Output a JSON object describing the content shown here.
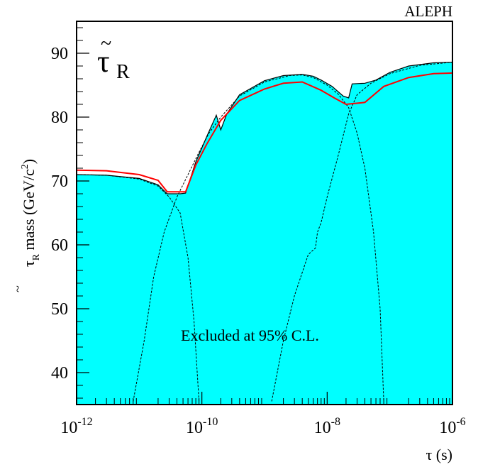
{
  "chart_data": {
    "type": "area",
    "title": "ALEPH",
    "particle_label": "τ̃R",
    "ylabel": "τ̃R mass (GeV/c²)",
    "xlabel": "τ (s)",
    "xscale": "log",
    "xlim": [
      1e-12,
      1e-06
    ],
    "ylim": [
      35,
      95
    ],
    "x_ticks": [
      {
        "value": 1e-12,
        "base": "10",
        "exp": "-12"
      },
      {
        "value": 1e-10,
        "base": "10",
        "exp": "-10"
      },
      {
        "value": 1e-08,
        "base": "10",
        "exp": "-8"
      },
      {
        "value": 1e-06,
        "base": "10",
        "exp": "-6"
      }
    ],
    "y_ticks": [
      40,
      50,
      60,
      70,
      80,
      90
    ],
    "annotation": "Excluded at 95% C.L.",
    "colors": {
      "excluded_fill": "#00ffff",
      "expected_line": "#ff0000",
      "component_line": "#000000"
    },
    "excluded_region": [
      [
        1e-12,
        71.0
      ],
      [
        3e-12,
        70.9
      ],
      [
        1e-11,
        70.4
      ],
      [
        2e-11,
        69.4
      ],
      [
        2.8e-11,
        68.0
      ],
      [
        4.5e-11,
        68.0
      ],
      [
        5.5e-11,
        68.1
      ],
      [
        8e-11,
        73
      ],
      [
        1.2e-10,
        77
      ],
      [
        1.7e-10,
        80.3
      ],
      [
        2e-10,
        78.0
      ],
      [
        2.5e-10,
        80.5
      ],
      [
        4e-10,
        83.5
      ],
      [
        1e-09,
        85.7
      ],
      [
        2e-09,
        86.5
      ],
      [
        4e-09,
        86.7
      ],
      [
        6e-09,
        86.4
      ],
      [
        8e-09,
        85.8
      ],
      [
        1.2e-08,
        84.8
      ],
      [
        1.8e-08,
        83.3
      ],
      [
        2.2e-08,
        83.0
      ],
      [
        2.5e-08,
        85.2
      ],
      [
        4e-08,
        85.3
      ],
      [
        6e-08,
        85.8
      ],
      [
        1e-07,
        87.0
      ],
      [
        2e-07,
        88.0
      ],
      [
        5e-07,
        88.5
      ],
      [
        1e-06,
        88.6
      ]
    ],
    "expected_limit": [
      [
        1e-12,
        71.7
      ],
      [
        3e-12,
        71.6
      ],
      [
        1e-11,
        71.0
      ],
      [
        2e-11,
        70.1
      ],
      [
        2.8e-11,
        68.3
      ],
      [
        5.5e-11,
        68.3
      ],
      [
        8e-11,
        72.5
      ],
      [
        1.2e-10,
        75.8
      ],
      [
        2e-10,
        79.5
      ],
      [
        4e-10,
        82.6
      ],
      [
        1e-09,
        84.4
      ],
      [
        2e-09,
        85.3
      ],
      [
        4e-09,
        85.5
      ],
      [
        8e-09,
        84.2
      ],
      [
        1.3e-08,
        83.0
      ],
      [
        2e-08,
        82.0
      ],
      [
        4e-08,
        82.3
      ],
      [
        8e-08,
        84.8
      ],
      [
        2e-07,
        86.2
      ],
      [
        5e-07,
        86.8
      ],
      [
        1e-06,
        86.9
      ]
    ],
    "component_curves": [
      [
        [
          1e-12,
          71.0
        ],
        [
          3e-12,
          70.9
        ],
        [
          1e-11,
          70.3
        ],
        [
          2e-11,
          69.2
        ],
        [
          3e-11,
          67.5
        ],
        [
          4.5e-11,
          65.0
        ],
        [
          6e-11,
          58.0
        ],
        [
          7.5e-11,
          48.0
        ],
        [
          9e-11,
          35.5
        ]
      ],
      [
        [
          8e-12,
          35.5
        ],
        [
          1.2e-11,
          45.0
        ],
        [
          1.7e-11,
          55.0
        ],
        [
          2.5e-11,
          62.0
        ],
        [
          4e-11,
          67.5
        ],
        [
          6e-11,
          71.0
        ],
        [
          9e-11,
          74.5
        ],
        [
          1.3e-10,
          77.5
        ],
        [
          2e-10,
          80.0
        ],
        [
          4e-10,
          83.3
        ],
        [
          1e-09,
          85.5
        ],
        [
          2.5e-09,
          86.5
        ],
        [
          4e-09,
          86.6
        ],
        [
          6e-09,
          86.2
        ],
        [
          1e-08,
          85.0
        ],
        [
          1.5e-08,
          83.6
        ],
        [
          2.2e-08,
          81.5
        ],
        [
          3e-08,
          77.5
        ],
        [
          4e-08,
          72.0
        ],
        [
          5.5e-08,
          62.0
        ],
        [
          7e-08,
          50.0
        ],
        [
          8e-08,
          35.5
        ]
      ],
      [
        [
          1.3e-09,
          35.5
        ],
        [
          2e-09,
          45.0
        ],
        [
          3e-09,
          52.0
        ],
        [
          5e-09,
          58.5
        ],
        [
          6.5e-09,
          59.5
        ],
        [
          7e-09,
          62.0
        ],
        [
          8e-09,
          63.5
        ],
        [
          1e-08,
          67.5
        ],
        [
          1.5e-08,
          74.0
        ],
        [
          2.2e-08,
          80.5
        ],
        [
          3e-08,
          83.5
        ],
        [
          5e-08,
          85.3
        ],
        [
          1e-07,
          86.8
        ],
        [
          3e-07,
          88.1
        ],
        [
          1e-06,
          88.6
        ]
      ]
    ]
  }
}
